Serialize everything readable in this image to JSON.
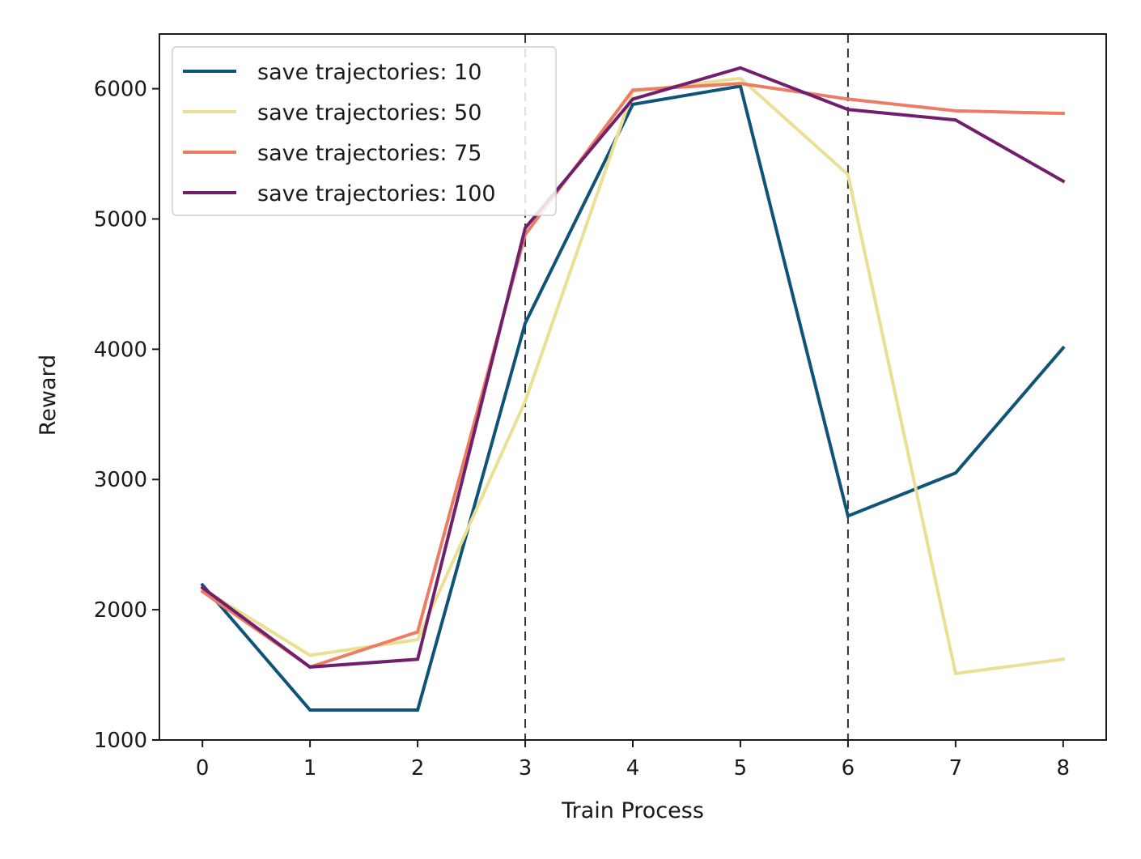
{
  "chart_data": {
    "type": "line",
    "title": "",
    "xlabel": "Train Process",
    "ylabel": "Reward",
    "x": [
      0,
      1,
      2,
      3,
      4,
      5,
      6,
      7,
      8
    ],
    "xlim": [
      -0.4,
      8.4
    ],
    "ylim": [
      1000,
      6420
    ],
    "xticks": [
      "0",
      "1",
      "2",
      "3",
      "4",
      "5",
      "6",
      "7",
      "8"
    ],
    "yticks": [
      "1000",
      "2000",
      "3000",
      "4000",
      "5000",
      "6000"
    ],
    "vlines": [
      3,
      6
    ],
    "grid": false,
    "legend_position": "upper-left",
    "series": [
      {
        "name": "save trajectories: 10",
        "color": "#0e5478",
        "values": [
          2190,
          1230,
          1230,
          4200,
          5880,
          6020,
          2720,
          3050,
          4010
        ]
      },
      {
        "name": "save trajectories: 50",
        "color": "#ebdf94",
        "values": [
          2160,
          1650,
          1770,
          3600,
          5980,
          6080,
          5340,
          1510,
          1620
        ]
      },
      {
        "name": "save trajectories: 75",
        "color": "#ec7c63",
        "values": [
          2140,
          1560,
          1830,
          4880,
          5990,
          6040,
          5920,
          5830,
          5810
        ]
      },
      {
        "name": "save trajectories: 100",
        "color": "#701f6e",
        "values": [
          2170,
          1560,
          1620,
          4930,
          5920,
          6160,
          5840,
          5760,
          5290
        ]
      }
    ]
  }
}
